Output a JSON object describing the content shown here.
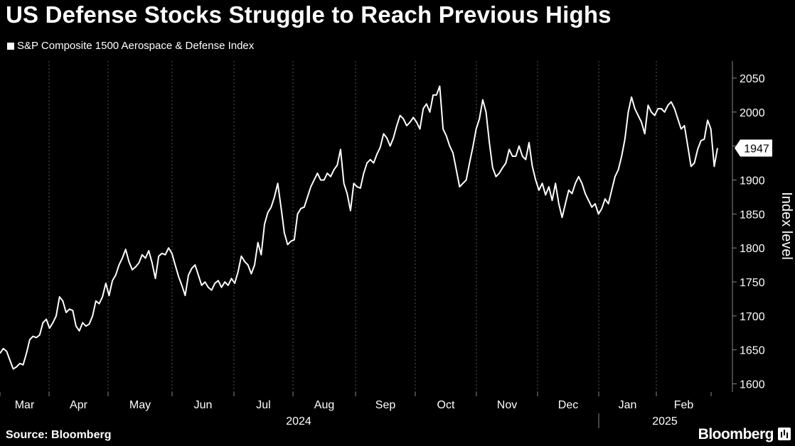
{
  "header": {
    "title": "US Defense Stocks Struggle to Reach Previous Highs"
  },
  "legend": {
    "label": "S&P Composite 1500 Aerospace & Defense Index"
  },
  "footer": {
    "source": "Source: Bloomberg",
    "brand": "Bloomberg"
  },
  "colors": {
    "background": "#000000",
    "line": "#ffffff",
    "grid": "#555555"
  },
  "chart_data": {
    "type": "line",
    "ylabel": "Index level",
    "ylim": [
      1588,
      2075
    ],
    "yticks": [
      1600,
      1650,
      1700,
      1750,
      1800,
      1850,
      1900,
      1950,
      2000,
      2050
    ],
    "y_position": "right",
    "grid": "vertical dotted",
    "months": [
      "Mar",
      "Apr",
      "May",
      "Jun",
      "Jul",
      "Aug",
      "Sep",
      "Oct",
      "Nov",
      "Dec",
      "Jan",
      "Feb"
    ],
    "years": [
      "2024",
      "2025"
    ],
    "last_value_label": "1947",
    "series": [
      {
        "name": "S&P Composite 1500 Aerospace & Defense Index",
        "values": [
          1645,
          1652,
          1648,
          1635,
          1622,
          1625,
          1630,
          1628,
          1645,
          1665,
          1670,
          1668,
          1672,
          1690,
          1695,
          1682,
          1690,
          1700,
          1728,
          1722,
          1705,
          1710,
          1708,
          1685,
          1678,
          1690,
          1685,
          1688,
          1700,
          1722,
          1718,
          1728,
          1748,
          1730,
          1752,
          1760,
          1775,
          1785,
          1798,
          1780,
          1768,
          1772,
          1778,
          1790,
          1785,
          1796,
          1778,
          1755,
          1788,
          1792,
          1790,
          1800,
          1792,
          1775,
          1758,
          1745,
          1730,
          1760,
          1770,
          1775,
          1760,
          1745,
          1750,
          1742,
          1738,
          1748,
          1752,
          1742,
          1750,
          1745,
          1755,
          1748,
          1765,
          1788,
          1780,
          1775,
          1762,
          1775,
          1808,
          1790,
          1835,
          1852,
          1860,
          1875,
          1895,
          1860,
          1822,
          1805,
          1810,
          1812,
          1850,
          1858,
          1860,
          1875,
          1890,
          1900,
          1910,
          1900,
          1900,
          1910,
          1905,
          1915,
          1922,
          1945,
          1895,
          1880,
          1855,
          1895,
          1890,
          1888,
          1910,
          1925,
          1930,
          1925,
          1938,
          1948,
          1968,
          1962,
          1950,
          1962,
          1980,
          1995,
          1990,
          1980,
          1985,
          1992,
          1985,
          1975,
          2005,
          2012,
          2000,
          2025,
          2025,
          2038,
          1975,
          1965,
          1950,
          1940,
          1915,
          1890,
          1895,
          1900,
          1925,
          1948,
          1975,
          1990,
          2018,
          2000,
          1955,
          1918,
          1905,
          1910,
          1918,
          1925,
          1945,
          1935,
          1935,
          1950,
          1935,
          1930,
          1955,
          1920,
          1900,
          1885,
          1895,
          1878,
          1890,
          1870,
          1895,
          1865,
          1845,
          1865,
          1885,
          1880,
          1895,
          1905,
          1895,
          1880,
          1870,
          1860,
          1865,
          1850,
          1858,
          1872,
          1865,
          1885,
          1905,
          1915,
          1935,
          1960,
          2000,
          2022,
          2005,
          1995,
          1985,
          1968,
          2010,
          2000,
          1995,
          2005,
          2005,
          2000,
          2010,
          2015,
          2005,
          1990,
          1975,
          1980,
          1950,
          1920,
          1925,
          1945,
          1958,
          1960,
          1988,
          1975,
          1920,
          1947
        ]
      }
    ]
  }
}
